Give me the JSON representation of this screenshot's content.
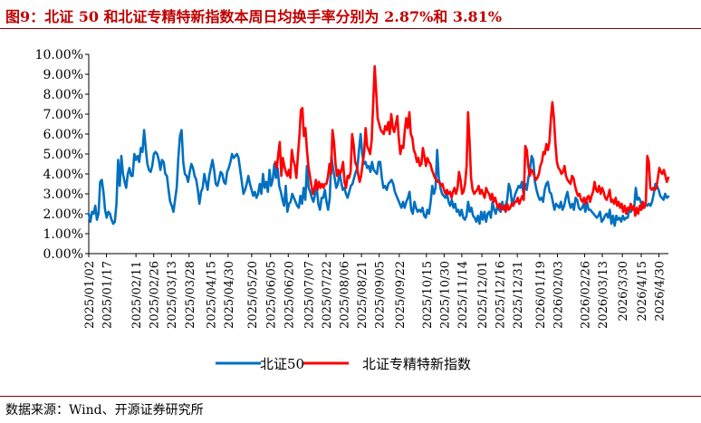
{
  "title": "图9：北证 50 和北证专精特新指数本周日均换手率分别为 2.87%和 3.81%",
  "source": "数据来源：Wind、开源证券研究所",
  "colors": {
    "title": "#c00000",
    "rule": "#8b0000",
    "s1": "#0070c0",
    "s2": "#ff0000"
  },
  "chart_data": {
    "type": "line",
    "title": "图9：北证 50 和北证专精特新指数本周日均换手率分别为 2.87%和 3.81%",
    "xlabel": "",
    "ylabel": "",
    "ylim": [
      0,
      10
    ],
    "y_unit": "%",
    "yticks": [
      "0.00%",
      "1.00%",
      "2.00%",
      "3.00%",
      "4.00%",
      "5.00%",
      "6.00%",
      "7.00%",
      "8.00%",
      "9.00%",
      "10.00%"
    ],
    "xticks": [
      "2025/01/02",
      "2025/01/17",
      "2025/02/11",
      "2025/02/26",
      "2025/03/13",
      "2025/03/28",
      "2025/04/15",
      "2025/04/30",
      "2025/05/20",
      "2025/06/05",
      "2025/06/20",
      "2025/07/07",
      "2025/07/22",
      "2025/08/06",
      "2025/08/21",
      "2025/09/05",
      "2025/09/22",
      "2025/10/15",
      "2025/10/30",
      "2025/11/14",
      "2025/12/01",
      "2025/12/16",
      "2025/12/31",
      "2026/01/19",
      "2026/02/03",
      "2026/02/26",
      "2026/03/13",
      "2026/3/30",
      "2026/4/15",
      "2026/4/30"
    ],
    "grid": false,
    "legend_position": "bottom",
    "series": [
      {
        "name": "北证50",
        "color": "#0070c0",
        "x_start": "2025/01/02",
        "x_end": "2026/05/08",
        "values": [
          2.0,
          1.6,
          2.1,
          2.0,
          2.4,
          1.7,
          2.0,
          3.6,
          3.7,
          3.1,
          2.2,
          1.8,
          2.1,
          2.0,
          1.7,
          1.5,
          1.6,
          2.5,
          4.7,
          3.4,
          4.9,
          4.0,
          3.6,
          3.3,
          4.0,
          4.3,
          3.9,
          3.9,
          5.0,
          4.7,
          4.9,
          4.6,
          5.3,
          5.1,
          6.2,
          5.3,
          4.5,
          4.2,
          4.1,
          4.4,
          5.0,
          5.1,
          5.0,
          4.7,
          4.2,
          4.7,
          4.6,
          4.0,
          3.9,
          3.2,
          2.6,
          2.4,
          2.1,
          2.7,
          3.3,
          4.8,
          5.9,
          6.2,
          4.6,
          4.0,
          3.9,
          3.6,
          4.1,
          4.5,
          4.3,
          3.9,
          3.7,
          3.2,
          2.5,
          3.1,
          3.3,
          4.0,
          3.6,
          3.2,
          3.9,
          4.3,
          4.7,
          4.2,
          3.5,
          3.4,
          3.7,
          4.1,
          4.0,
          3.6,
          3.5,
          4.1,
          4.3,
          4.6,
          5.0,
          4.8,
          4.9,
          5.0,
          4.8,
          4.2,
          3.6,
          3.0,
          3.2,
          3.5,
          3.9,
          3.5,
          3.2,
          2.9,
          3.1,
          2.8,
          3.0,
          3.5,
          3.0,
          4.0,
          3.3,
          3.6,
          3.1,
          4.2,
          3.4,
          3.7,
          4.5,
          3.8,
          4.3,
          3.4,
          3.1,
          2.7,
          2.4,
          3.4,
          2.1,
          2.5,
          2.6,
          3.0,
          2.8,
          2.6,
          2.4,
          2.3,
          2.9,
          2.5,
          3.3,
          2.7,
          4.4,
          3.3,
          3.1,
          2.8,
          2.6,
          3.0,
          3.3,
          2.5,
          2.2,
          2.8,
          2.8,
          3.2,
          2.6,
          2.2,
          2.8,
          4.9,
          4.3,
          3.8,
          3.3,
          3.5,
          4.1,
          3.6,
          3.2,
          3.3,
          3.0,
          2.8,
          3.1,
          3.4,
          3.5,
          3.8,
          4.1,
          4.3,
          5.2,
          6.0,
          5.0,
          4.5,
          4.6,
          4.3,
          4.4,
          4.1,
          4.6,
          4.2,
          4.1,
          4.0,
          4.6,
          4.6,
          3.8,
          3.3,
          3.4,
          3.2,
          3.5,
          3.6,
          3.7,
          3.5,
          3.1,
          2.9,
          2.7,
          2.5,
          2.3,
          2.6,
          2.3,
          2.6,
          2.8,
          3.1,
          2.2,
          2.0,
          2.6,
          2.3,
          2.1,
          2.2,
          2.1,
          2.3,
          1.9,
          1.8,
          2.2,
          2.0,
          2.6,
          3.4,
          3.0,
          3.3,
          5.2,
          3.8,
          3.3,
          3.0,
          2.9,
          2.8,
          3.0,
          2.6,
          2.4,
          2.7,
          2.3,
          2.5,
          2.1,
          2.2,
          1.9,
          2.2,
          1.8,
          1.7,
          1.9,
          2.6,
          2.1,
          2.3,
          1.9,
          1.8,
          1.6,
          1.9,
          1.5,
          2.1,
          1.7,
          2.1,
          1.6,
          2.0,
          2.1,
          1.8,
          2.6,
          2.2,
          2.0,
          2.4,
          2.2,
          2.1,
          2.6,
          2.2,
          2.4,
          2.7,
          3.5,
          3.2,
          2.5,
          2.7,
          3.0,
          3.2,
          3.4,
          3.3,
          3.6,
          3.0,
          3.5,
          3.2,
          3.8,
          4.2,
          4.9,
          4.7,
          3.6,
          3.2,
          2.9,
          2.7,
          2.8,
          2.6,
          3.2,
          3.5,
          3.6,
          3.1,
          3.0,
          2.6,
          2.2,
          2.5,
          2.4,
          2.3,
          2.6,
          2.2,
          2.4,
          2.8,
          3.1,
          2.6,
          2.3,
          2.5,
          2.2,
          2.8,
          2.7,
          2.3,
          2.2,
          2.3,
          2.5,
          2.1,
          2.6,
          2.2,
          2.2,
          2.1,
          2.0,
          1.9,
          1.8,
          1.9,
          2.1,
          1.6,
          1.7,
          1.9,
          2.0,
          1.8,
          2.2,
          1.5,
          1.9,
          1.4,
          1.9,
          1.7,
          1.8,
          1.6,
          1.9,
          1.7,
          1.8,
          1.8,
          2.2,
          2.1,
          2.3,
          2.3,
          3.3,
          2.7,
          2.8,
          2.6,
          2.3,
          2.3,
          2.5,
          2.4,
          2.5,
          2.4,
          2.6,
          3.0,
          3.5,
          3.4,
          3.2,
          2.9,
          2.8,
          2.7,
          3.0,
          2.8,
          2.87
        ]
      },
      {
        "name": "北证专精特新指数",
        "color": "#ff0000",
        "x_start": "2025/06/09",
        "x_end": "2026/05/08",
        "values": [
          4.6,
          4.3,
          5.0,
          5.6,
          3.9,
          4.8,
          4.4,
          4.1,
          3.9,
          4.2,
          3.8,
          5.2,
          4.7,
          4.4,
          3.8,
          4.9,
          5.9,
          7.2,
          7.3,
          5.9,
          6.3,
          5.2,
          4.4,
          3.9,
          3.4,
          3.0,
          3.3,
          3.7,
          3.2,
          3.6,
          3.3,
          3.5,
          3.3,
          3.5,
          3.5,
          3.9,
          4.5,
          4.0,
          6.2,
          5.6,
          4.5,
          3.9,
          4.2,
          4.0,
          4.2,
          4.6,
          3.6,
          3.3,
          3.9,
          3.8,
          4.1,
          6.0,
          5.5,
          4.6,
          4.4,
          4.0,
          3.6,
          3.9,
          4.5,
          5.1,
          6.3,
          5.4,
          5.2,
          5.0,
          5.7,
          7.5,
          9.4,
          8.1,
          6.8,
          6.5,
          6.2,
          6.1,
          6.0,
          6.4,
          6.2,
          6.6,
          6.0,
          7.0,
          6.3,
          6.1,
          6.5,
          6.9,
          5.8,
          5.0,
          5.4,
          5.3,
          6.2,
          6.8,
          6.3,
          7.1,
          6.0,
          5.8,
          5.2,
          5.0,
          4.6,
          4.8,
          4.4,
          4.5,
          5.3,
          4.9,
          4.4,
          4.8,
          4.6,
          4.5,
          4.2,
          4.0,
          3.8,
          3.7,
          3.6,
          3.6,
          3.4,
          3.5,
          3.2,
          3.0,
          3.2,
          3.0,
          3.1,
          2.8,
          3.1,
          3.3,
          3.0,
          3.3,
          4.1,
          3.7,
          3.0,
          3.1,
          3.5,
          4.4,
          7.1,
          5.6,
          3.8,
          3.2,
          3.0,
          3.1,
          3.2,
          3.4,
          3.0,
          3.2,
          3.0,
          2.8,
          3.3,
          3.1,
          3.0,
          2.7,
          3.0,
          2.6,
          2.8,
          2.5,
          2.3,
          2.5,
          2.2,
          2.3,
          2.4,
          2.1,
          2.5,
          2.2,
          2.3,
          2.5,
          2.4,
          2.6,
          2.6,
          2.8,
          2.5,
          2.7,
          2.9,
          2.7,
          5.4,
          5.2,
          4.4,
          3.9,
          4.2,
          4.1,
          3.9,
          3.7,
          3.8,
          4.0,
          4.4,
          4.6,
          5.1,
          5.0,
          5.5,
          5.2,
          5.6,
          6.8,
          7.6,
          6.8,
          5.5,
          4.6,
          4.3,
          4.2,
          4.0,
          4.1,
          4.4,
          3.9,
          3.7,
          3.6,
          3.5,
          3.9,
          3.8,
          3.4,
          3.1,
          2.9,
          3.0,
          2.7,
          2.6,
          2.8,
          2.5,
          2.8,
          2.9,
          2.6,
          2.9,
          3.1,
          3.6,
          3.2,
          3.1,
          3.4,
          3.0,
          3.3,
          3.1,
          2.8,
          2.7,
          2.9,
          3.2,
          2.6,
          2.7,
          2.5,
          2.8,
          2.4,
          2.6,
          2.3,
          2.5,
          2.1,
          2.4,
          2.0,
          2.3,
          2.2,
          2.5,
          2.2,
          2.4,
          1.9,
          2.3,
          2.0,
          2.4,
          2.2,
          2.6,
          2.3,
          2.6,
          4.9,
          4.6,
          3.3,
          3.2,
          3.3,
          3.2,
          3.3,
          3.8,
          4.3,
          4.1,
          4.0,
          4.2,
          3.9,
          3.6,
          3.81
        ]
      }
    ]
  }
}
